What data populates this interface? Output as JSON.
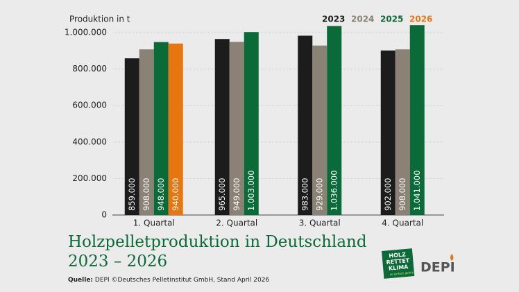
{
  "chart_data": {
    "type": "bar",
    "y_label": "Produktion in t",
    "title_lines": [
      "Holzpelletproduktion in Deutschland",
      "2023 – 2026"
    ],
    "source_label": "Quelle:",
    "source": "DEPI ©Deutsches Pelletinstitut GmbH, Stand April 2026",
    "categories": [
      "1. Quartal",
      "2. Quartal",
      "3. Quartal",
      "4. Quartal"
    ],
    "series": [
      {
        "name": "2023",
        "color": "#1c1c1c",
        "values": [
          859000,
          965000,
          983000,
          902000
        ],
        "value_labels": [
          "859.000",
          "965.000",
          "983.000",
          "902.000"
        ]
      },
      {
        "name": "2024",
        "color": "#8a8274",
        "values": [
          908000,
          949000,
          929000,
          908000
        ],
        "value_labels": [
          "908.000",
          "949.000",
          "929.000",
          "908.000"
        ]
      },
      {
        "name": "2025",
        "color": "#0a6b38",
        "values": [
          948000,
          1003000,
          1036000,
          1041000
        ],
        "value_labels": [
          "948.000",
          "1.003.000",
          "1.036.000",
          "1.041.000"
        ]
      },
      {
        "name": "2026",
        "color": "#e8760f",
        "values": [
          940000,
          null,
          null,
          null
        ],
        "value_labels": [
          "940.000",
          null,
          null,
          null
        ]
      }
    ],
    "ylim": [
      0,
      1000000
    ],
    "yticks": [
      0,
      {
        "value": 200000,
        "label": "200.000"
      },
      {
        "value": 400000,
        "label": "400.000"
      },
      {
        "value": 600000,
        "label": "600.000"
      },
      {
        "value": 800000,
        "label": "800.000"
      },
      {
        "value": 1000000,
        "label": "1.000.000"
      }
    ],
    "grid": true,
    "logos": {
      "badge": [
        "HOLZ",
        "RETTET",
        "KLIMA",
        "so einfach geht's"
      ],
      "brand": "DEPI"
    }
  }
}
